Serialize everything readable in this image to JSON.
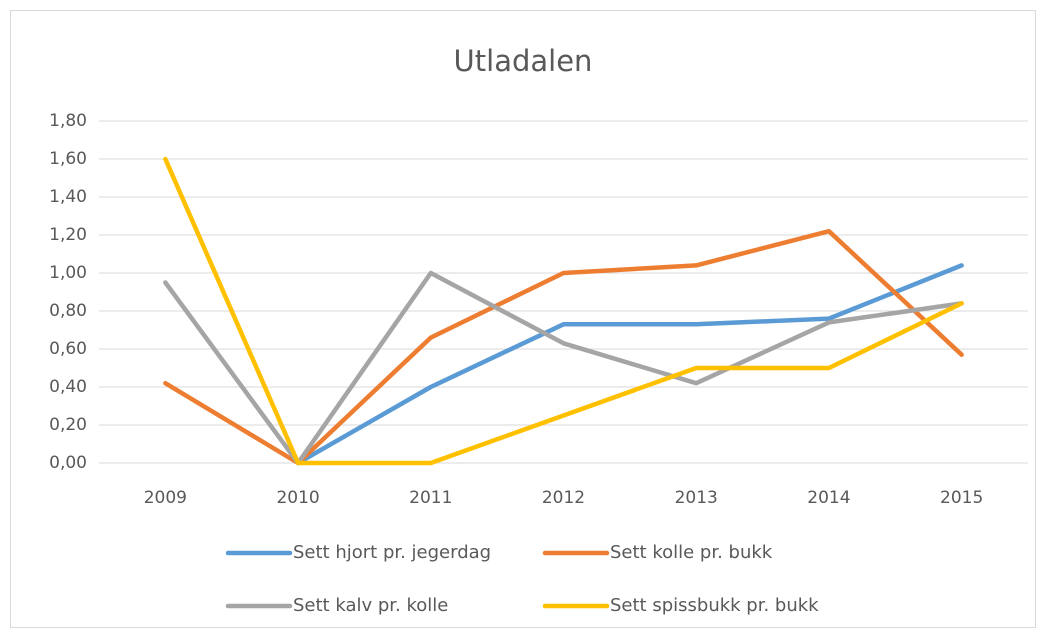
{
  "chart_data": {
    "type": "line",
    "title": "Utladalen",
    "categories": [
      "2009",
      "2010",
      "2011",
      "2012",
      "2013",
      "2014",
      "2015"
    ],
    "series": [
      {
        "name": "Sett hjort pr. jegerdag",
        "color": "#5b9bd5",
        "values": [
          null,
          0,
          0.4,
          0.73,
          0.73,
          0.76,
          1.04
        ]
      },
      {
        "name": "Sett kolle pr. bukk",
        "color": "#ed7d31",
        "values": [
          0.42,
          0,
          0.66,
          1.0,
          1.04,
          1.22,
          0.57
        ]
      },
      {
        "name": "Sett kalv pr. kolle",
        "color": "#a5a5a5",
        "values": [
          0.95,
          0,
          1.0,
          0.63,
          0.42,
          0.74,
          0.84
        ]
      },
      {
        "name": "Sett spissbukk pr. bukk",
        "color": "#ffc000",
        "values": [
          1.6,
          0,
          0,
          0.25,
          0.5,
          0.5,
          0.84
        ]
      }
    ],
    "ylim": [
      0,
      1.8
    ],
    "yticks": [
      {
        "value": 0,
        "label": "0,00"
      },
      {
        "value": 0.2,
        "label": "0,20"
      },
      {
        "value": 0.4,
        "label": "0,40"
      },
      {
        "value": 0.6,
        "label": "0,60"
      },
      {
        "value": 0.8,
        "label": "0,80"
      },
      {
        "value": 1.0,
        "label": "1,00"
      },
      {
        "value": 1.2,
        "label": "1,20"
      },
      {
        "value": 1.4,
        "label": "1,40"
      },
      {
        "value": 1.6,
        "label": "1,60"
      },
      {
        "value": 1.8,
        "label": "1,80"
      }
    ],
    "grid": true,
    "legend": "bottom"
  }
}
